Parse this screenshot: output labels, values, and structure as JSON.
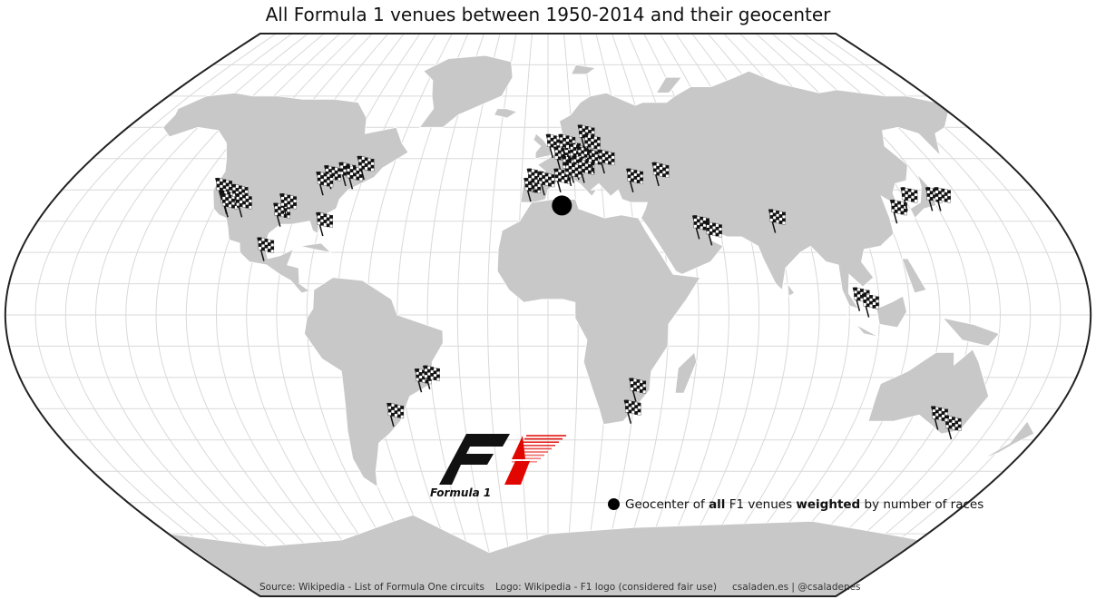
{
  "title": "All Formula 1 venues between 1950-2014 and their geocenter",
  "legend": {
    "t1": "Geocenter of ",
    "t2": "all",
    "t3": " F1 venues ",
    "t4": "weighted",
    "t5": " by number of races"
  },
  "credits": {
    "source": "Source: Wikipedia - List of Formula One circuits",
    "logo": "Logo: Wikipedia - F1 logo (considered fair use)",
    "author": "csaladen.es | @csaladenes"
  },
  "logo": {
    "caption": "Formula 1"
  },
  "colors": {
    "land": "#c8c8c8",
    "border": "#ffffff",
    "grid": "#d9d9d9",
    "flag": "#111111",
    "logo_red": "#e10600"
  },
  "geocenter": {
    "lon": 5,
    "lat": 35
  },
  "venues": [
    {
      "lon": -122,
      "lat": 38
    },
    {
      "lon": -118,
      "lat": 34
    },
    {
      "lon": -117,
      "lat": 33
    },
    {
      "lon": -115,
      "lat": 36
    },
    {
      "lon": -112,
      "lat": 33
    },
    {
      "lon": -97,
      "lat": 30
    },
    {
      "lon": -96,
      "lat": 33
    },
    {
      "lon": -84,
      "lat": 42
    },
    {
      "lon": -86,
      "lat": 40
    },
    {
      "lon": -79,
      "lat": 43
    },
    {
      "lon": -76,
      "lat": 42
    },
    {
      "lon": -73,
      "lat": 45
    },
    {
      "lon": -81,
      "lat": 27
    },
    {
      "lon": -99,
      "lat": 19
    },
    {
      "lon": -46,
      "lat": -23
    },
    {
      "lon": -43,
      "lat": -22
    },
    {
      "lon": -58,
      "lat": -34
    },
    {
      "lon": -9,
      "lat": 38
    },
    {
      "lon": -8,
      "lat": 41
    },
    {
      "lon": -4,
      "lat": 40
    },
    {
      "lon": -1,
      "lat": 52
    },
    {
      "lon": 2,
      "lat": 48
    },
    {
      "lon": 5,
      "lat": 45
    },
    {
      "lon": 7,
      "lat": 44
    },
    {
      "lon": 6,
      "lat": 50
    },
    {
      "lon": 4,
      "lat": 52
    },
    {
      "lon": 8,
      "lat": 49
    },
    {
      "lon": 11,
      "lat": 48
    },
    {
      "lon": 9,
      "lat": 45
    },
    {
      "lon": 11,
      "lat": 44
    },
    {
      "lon": 15,
      "lat": 47
    },
    {
      "lon": 19,
      "lat": 47
    },
    {
      "lon": 2,
      "lat": 41
    },
    {
      "lon": 12,
      "lat": 55
    },
    {
      "lon": 14,
      "lat": 52
    },
    {
      "lon": 6,
      "lat": 43
    },
    {
      "lon": 29,
      "lat": 41
    },
    {
      "lon": 39,
      "lat": 43
    },
    {
      "lon": 50,
      "lat": 26
    },
    {
      "lon": 54,
      "lat": 24
    },
    {
      "lon": 77,
      "lat": 28
    },
    {
      "lon": 101,
      "lat": 3
    },
    {
      "lon": 104,
      "lat": 1
    },
    {
      "lon": 121,
      "lat": 31
    },
    {
      "lon": 127,
      "lat": 35
    },
    {
      "lon": 136,
      "lat": 35
    },
    {
      "lon": 139,
      "lat": 35
    },
    {
      "lon": 145,
      "lat": -38
    },
    {
      "lon": 138,
      "lat": -35
    },
    {
      "lon": 28,
      "lat": -26
    },
    {
      "lon": 27,
      "lat": -33
    }
  ]
}
